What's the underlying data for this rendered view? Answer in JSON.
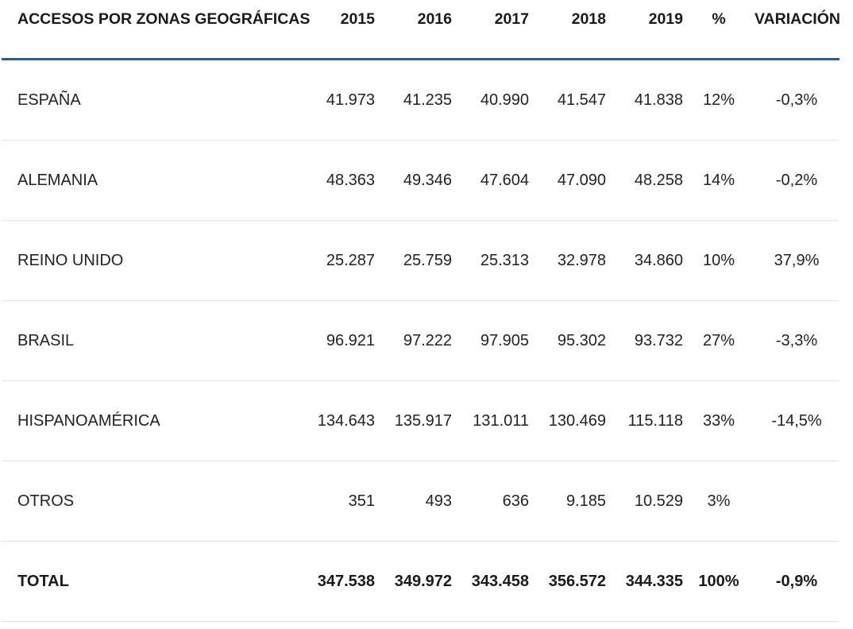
{
  "table": {
    "headers": {
      "zone": "ACCESOS POR ZONAS GEOGRÁFICAS",
      "y2015": "2015",
      "y2016": "2016",
      "y2017": "2017",
      "y2018": "2018",
      "y2019": "2019",
      "pct": "%",
      "variation": "VARIACIÓN"
    },
    "rows": [
      {
        "zone": "ESPAÑA",
        "y2015": "41.973",
        "y2016": "41.235",
        "y2017": "40.990",
        "y2018": "41.547",
        "y2019": "41.838",
        "pct": "12%",
        "variation": "-0,3%"
      },
      {
        "zone": "ALEMANIA",
        "y2015": "48.363",
        "y2016": "49.346",
        "y2017": "47.604",
        "y2018": "47.090",
        "y2019": "48.258",
        "pct": "14%",
        "variation": "-0,2%"
      },
      {
        "zone": "REINO UNIDO",
        "y2015": "25.287",
        "y2016": "25.759",
        "y2017": "25.313",
        "y2018": "32.978",
        "y2019": "34.860",
        "pct": "10%",
        "variation": "37,9%"
      },
      {
        "zone": "BRASIL",
        "y2015": "96.921",
        "y2016": "97.222",
        "y2017": "97.905",
        "y2018": "95.302",
        "y2019": "93.732",
        "pct": "27%",
        "variation": "-3,3%"
      },
      {
        "zone": "HISPANOAMÉRICA",
        "y2015": "134.643",
        "y2016": "135.917",
        "y2017": "131.011",
        "y2018": "130.469",
        "y2019": "115.118",
        "pct": "33%",
        "variation": "-14,5%"
      },
      {
        "zone": "OTROS",
        "y2015": "351",
        "y2016": "493",
        "y2017": "636",
        "y2018": "9.185",
        "y2019": "10.529",
        "pct": "3%",
        "variation": ""
      }
    ],
    "total": {
      "zone": "TOTAL",
      "y2015": "347.538",
      "y2016": "349.972",
      "y2017": "343.458",
      "y2018": "356.572",
      "y2019": "344.335",
      "pct": "100%",
      "variation": "-0,9%"
    }
  },
  "colors": {
    "header_rule": "#2b5f8a",
    "row_divider": "#e3e3e3",
    "text": "#222222"
  }
}
